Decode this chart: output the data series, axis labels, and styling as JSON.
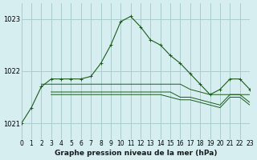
{
  "title": "Graphe pression niveau de la mer (hPa)",
  "background_color": "#d6eef0",
  "grid_color": "#aacccc",
  "line_color": "#1a5c1a",
  "xlim": [
    0,
    23
  ],
  "ylim": [
    1020.7,
    1023.3
  ],
  "yticks": [
    1021,
    1022,
    1023
  ],
  "xticks": [
    0,
    1,
    2,
    3,
    4,
    5,
    6,
    7,
    8,
    9,
    10,
    11,
    12,
    13,
    14,
    15,
    16,
    17,
    18,
    19,
    20,
    21,
    22,
    23
  ],
  "series_main": {
    "x": [
      0,
      1,
      2,
      3,
      4,
      5,
      6,
      7,
      8,
      9,
      10,
      11,
      12,
      13,
      14,
      15,
      16,
      17,
      18,
      19,
      20,
      21,
      22,
      23
    ],
    "y": [
      1021.0,
      1021.3,
      1021.7,
      1021.85,
      1021.85,
      1021.85,
      1021.85,
      1021.9,
      1022.15,
      1022.5,
      1022.95,
      1023.05,
      1022.85,
      1022.6,
      1022.5,
      1022.3,
      1022.15,
      1021.95,
      1021.75,
      1021.55,
      1021.65,
      1021.85,
      1021.85,
      1021.65
    ]
  },
  "series_flat1": {
    "x": [
      2,
      3,
      4,
      5,
      6,
      7,
      8,
      9,
      10,
      11,
      12,
      13,
      14,
      15,
      16,
      17,
      18,
      19,
      20,
      21,
      22,
      23
    ],
    "y": [
      1021.75,
      1021.75,
      1021.75,
      1021.75,
      1021.75,
      1021.75,
      1021.75,
      1021.75,
      1021.75,
      1021.75,
      1021.75,
      1021.75,
      1021.75,
      1021.75,
      1021.75,
      1021.65,
      1021.6,
      1021.55,
      1021.55,
      1021.55,
      1021.55,
      1021.55
    ]
  },
  "series_flat2": {
    "x": [
      3,
      4,
      5,
      6,
      7,
      8,
      9,
      10,
      11,
      12,
      13,
      14,
      15,
      16,
      17,
      18,
      19,
      20,
      21,
      22,
      23
    ],
    "y": [
      1021.6,
      1021.6,
      1021.6,
      1021.6,
      1021.6,
      1021.6,
      1021.6,
      1021.6,
      1021.6,
      1021.6,
      1021.6,
      1021.6,
      1021.6,
      1021.5,
      1021.5,
      1021.45,
      1021.4,
      1021.35,
      1021.55,
      1021.55,
      1021.4
    ]
  },
  "series_flat3": {
    "x": [
      3,
      4,
      5,
      6,
      7,
      8,
      9,
      10,
      11,
      12,
      13,
      14,
      15,
      16,
      17,
      18,
      19,
      20,
      21,
      22,
      23
    ],
    "y": [
      1021.55,
      1021.55,
      1021.55,
      1021.55,
      1021.55,
      1021.55,
      1021.55,
      1021.55,
      1021.55,
      1021.55,
      1021.55,
      1021.55,
      1021.5,
      1021.45,
      1021.45,
      1021.4,
      1021.35,
      1021.3,
      1021.5,
      1021.5,
      1021.35
    ]
  }
}
